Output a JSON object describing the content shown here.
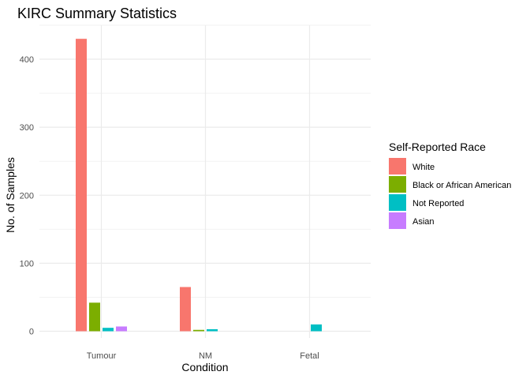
{
  "chart_data": {
    "type": "bar",
    "title": "KIRC Summary Statistics",
    "xlabel": "Condition",
    "ylabel": "No. of Samples",
    "categories": [
      "Tumour",
      "NM",
      "Fetal"
    ],
    "ylim": [
      0,
      450
    ],
    "yticks": [
      "0",
      "100",
      "200",
      "300",
      "400"
    ],
    "grid": true,
    "legend_title": "Self-Reported Race",
    "legend_position": "right",
    "series": [
      {
        "name": "White",
        "color": "#F8766D",
        "values": [
          430,
          65,
          null
        ]
      },
      {
        "name": "Black or African American",
        "color": "#7CAE00",
        "values": [
          42,
          2,
          null
        ]
      },
      {
        "name": "Not Reported",
        "color": "#00BFC4",
        "values": [
          5,
          3,
          10
        ]
      },
      {
        "name": "Asian",
        "color": "#C77CFF",
        "values": [
          7,
          null,
          null
        ]
      }
    ]
  }
}
